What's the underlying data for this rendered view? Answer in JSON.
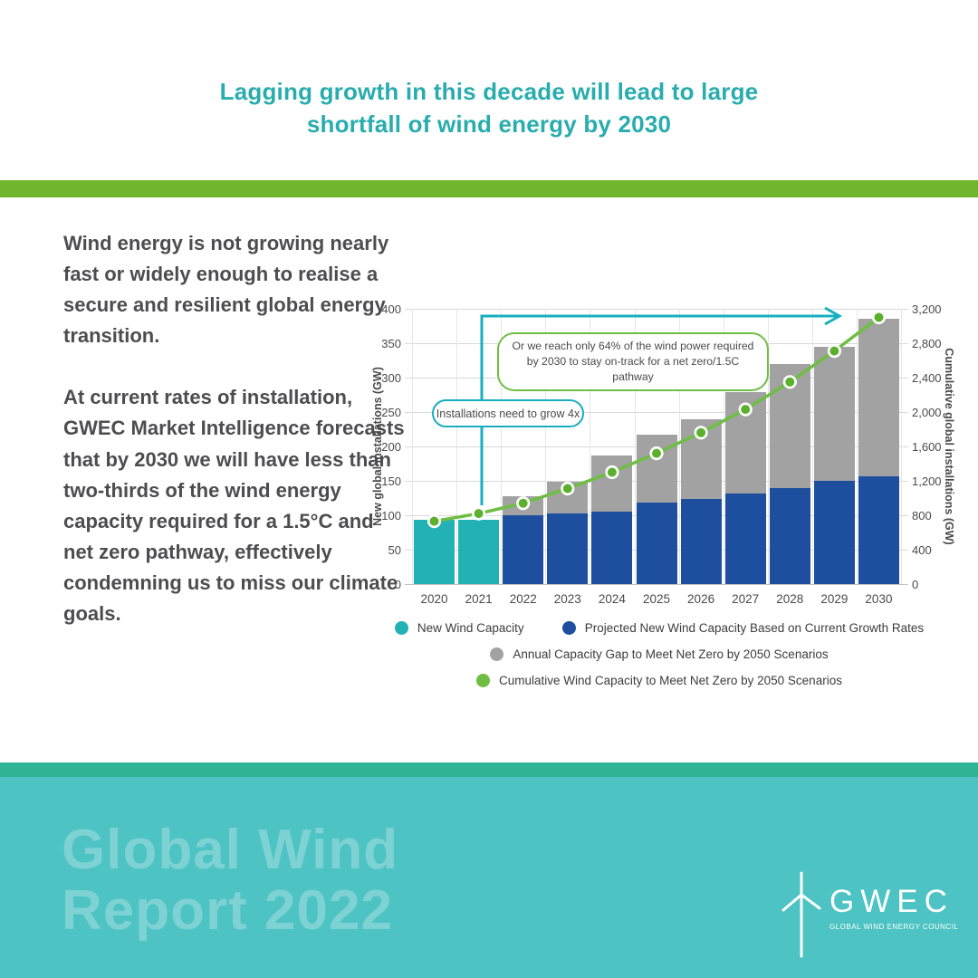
{
  "header": {
    "title": "Lagging growth in this decade will lead to large\nshortfall of wind energy by 2030"
  },
  "intro": {
    "paragraphs": [
      "Wind energy is not growing nearly fast or widely enough to realise a secure and resilient global energy transition.",
      "At current rates of installation, GWEC Market Intelligence forecasts that by 2030 we will have less than two-thirds of the wind energy capacity required for a 1.5°C and net zero pathway, effectively condemning us to miss our climate goals."
    ]
  },
  "chart_data": {
    "type": "bar",
    "subtype": "stacked-bar-with-line",
    "categories": [
      "2020",
      "2021",
      "2022",
      "2023",
      "2024",
      "2025",
      "2026",
      "2027",
      "2028",
      "2029",
      "2030"
    ],
    "series": [
      {
        "name": "New Wind Capacity",
        "type": "bar",
        "color": "#22B2B6",
        "values": [
          93,
          94,
          null,
          null,
          null,
          null,
          null,
          null,
          null,
          null,
          null
        ]
      },
      {
        "name": "Projected New Wind Capacity Based on Current Growth Rates",
        "type": "bar",
        "color": "#1E4F9E",
        "values": [
          null,
          null,
          100,
          103,
          105,
          118,
          124,
          131,
          140,
          150,
          156
        ]
      },
      {
        "name": "Annual Capacity Gap to Meet Net Zero by 2050 Scenarios",
        "type": "bar-stacked-on-previous",
        "color": "#A2A2A2",
        "values": [
          null,
          null,
          27,
          46,
          82,
          99,
          115,
          148,
          180,
          195,
          230
        ]
      },
      {
        "name": "Cumulative Wind Capacity to Meet Net Zero by 2050 Scenarios",
        "type": "line",
        "axis": "right",
        "color": "#6FBE44",
        "dot_color": "#5BB02C",
        "values": [
          730,
          820,
          940,
          1110,
          1300,
          1520,
          1760,
          2030,
          2350,
          2710,
          3100
        ]
      }
    ],
    "left_axis": {
      "label": "New global installations (GW)",
      "min": 0,
      "max": 400,
      "step": 50
    },
    "right_axis": {
      "label": "Cumulative global installations (GW)",
      "min": 0,
      "max": 3200,
      "step": 400
    },
    "grid": true,
    "legend_position": "bottom",
    "annotations": [
      {
        "text": "Installations need to grow 4x",
        "style": "teal-pill"
      },
      {
        "text": "Or we reach only 64% of the wind power required by 2030 to stay on-track for a net zero/1.5C pathway",
        "style": "green-box"
      }
    ]
  },
  "footer": {
    "report_title": "Global Wind\nReport 2022",
    "logo_text": "GWEC",
    "logo_tagline": "GLOBAL WIND ENERGY COUNCIL"
  },
  "colors": {
    "accent_teal": "#29ACAE",
    "divider_green": "#70B62C",
    "bar_teal": "#22B2B6",
    "bar_blue": "#1E4F9E",
    "bar_gray": "#A2A2A2",
    "line_green": "#6FBE44",
    "dot_green": "#5BB02C",
    "arrow_teal": "#17AFC0",
    "footer_strip": "#2FB394",
    "footer_bg": "#4DC3C3",
    "footer_text": "#7ED2D3",
    "body_text": "#4D4D4F"
  }
}
